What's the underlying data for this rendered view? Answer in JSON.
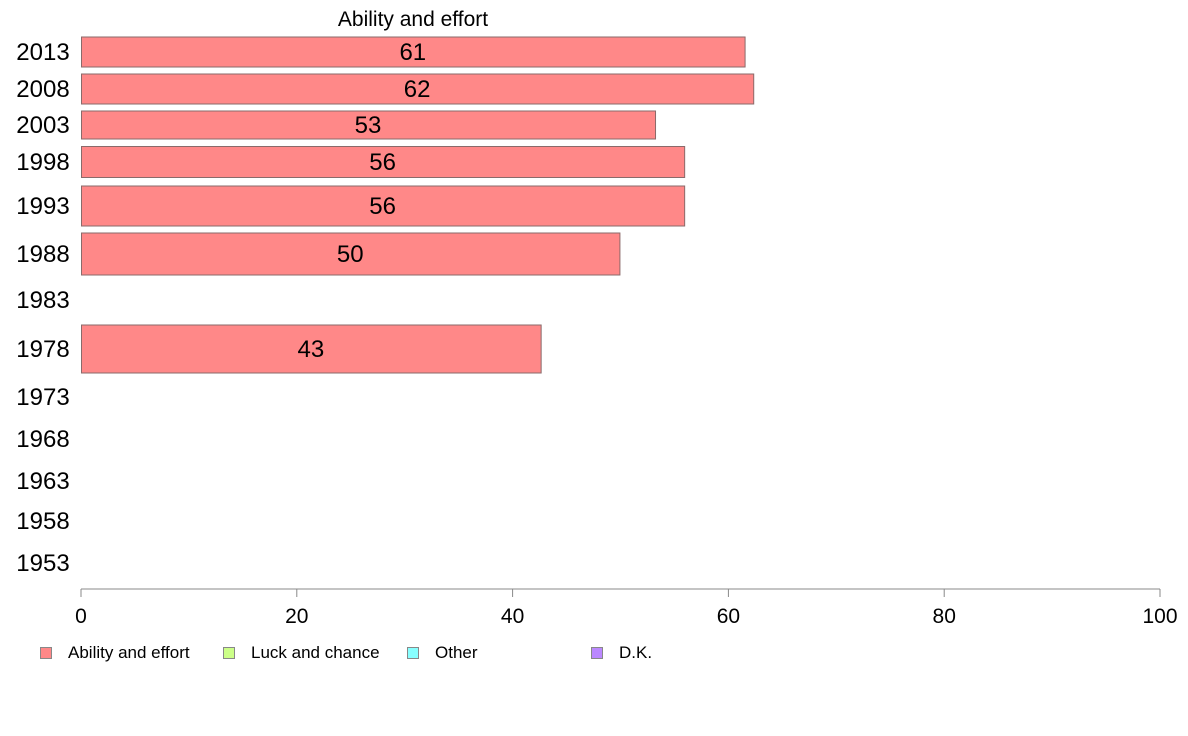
{
  "chart_data": {
    "type": "bar",
    "orientation": "horizontal",
    "title": "Ability and effort",
    "categories": [
      "2013",
      "2008",
      "2003",
      "1998",
      "1993",
      "1988",
      "1983",
      "1978",
      "1973",
      "1968",
      "1963",
      "1958",
      "1953"
    ],
    "series": [
      {
        "name": "Ability and effort",
        "color": "#ff8888",
        "values": [
          61.5,
          62.3,
          53.2,
          55.9,
          55.9,
          49.9,
          null,
          42.6,
          null,
          null,
          null,
          null,
          null
        ],
        "labels": [
          "61",
          "62",
          "53",
          "56",
          "56",
          "50",
          "",
          "43",
          "",
          "",
          "",
          "",
          ""
        ]
      }
    ],
    "xlim": [
      0,
      100
    ],
    "xticks": [
      "0",
      "20",
      "40",
      "60",
      "80",
      "100"
    ],
    "grid": false,
    "legend_position": "bottom",
    "legend": [
      {
        "name": "Ability and effort",
        "color": "#ff8888"
      },
      {
        "name": "Luck and chance",
        "color": "#ccff88"
      },
      {
        "name": "Other",
        "color": "#88ffff"
      },
      {
        "name": "D.K.",
        "color": "#bb88ff"
      }
    ]
  }
}
